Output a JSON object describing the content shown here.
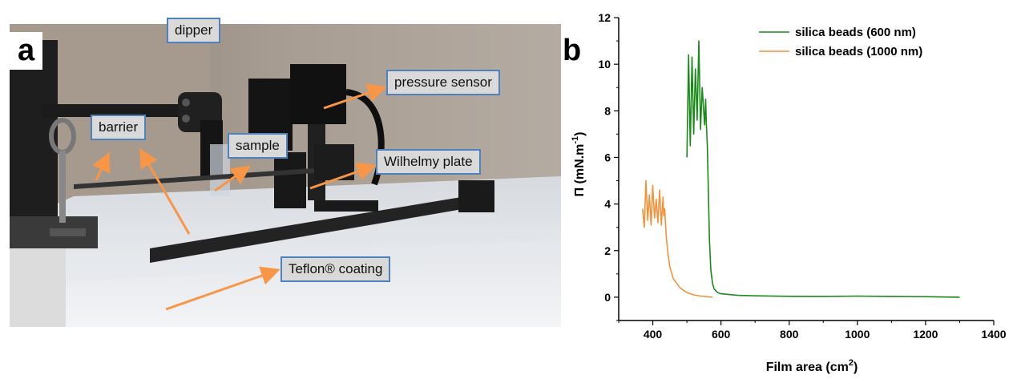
{
  "panel_a": {
    "letter": "a",
    "labels": {
      "dipper": "dipper",
      "barrier": "barrier",
      "sample": "sample",
      "pressure_sensor": "pressure sensor",
      "wilhelmy_plate": "Wilhelmy plate",
      "teflon": "Teflon® coating"
    },
    "colors": {
      "label_fill": "#d9d9d9",
      "label_border": "#4f81bd",
      "arrow": "#f79646"
    }
  },
  "panel_b": {
    "letter": "b"
  },
  "chart_data": {
    "type": "line",
    "xlabel": "Film area (cm",
    "xlabel_sup": "2",
    "xlabel_end": ")",
    "ylabel": "Π (mN.m",
    "ylabel_sup": "-1",
    "ylabel_end": ")",
    "xlim": [
      300,
      1400
    ],
    "ylim": [
      -1,
      12
    ],
    "x_ticks": [
      400,
      600,
      800,
      1000,
      1200,
      1400
    ],
    "y_ticks": [
      0,
      2,
      4,
      6,
      8,
      10,
      12
    ],
    "legend_position": "top-right",
    "series": [
      {
        "name": "silica beads (600 nm)",
        "color": "#1a8a1a",
        "x": [
          1300,
          1200,
          1100,
          1000,
          900,
          800,
          700,
          650,
          620,
          600,
          590,
          580,
          575,
          570,
          566,
          563,
          560,
          557,
          555,
          552,
          550,
          545,
          540,
          535,
          530,
          525,
          520,
          515,
          510,
          505,
          500
        ],
        "y": [
          0.0,
          0.02,
          0.03,
          0.05,
          0.03,
          0.04,
          0.06,
          0.08,
          0.12,
          0.15,
          0.2,
          0.35,
          0.6,
          1.2,
          2.5,
          4.5,
          6.5,
          7.5,
          8.5,
          7.4,
          7.8,
          9.0,
          7.2,
          11.0,
          7.6,
          9.8,
          7.0,
          10.3,
          6.5,
          10.4,
          6.0
        ]
      },
      {
        "name": "silica beads (1000 nm)",
        "color": "#f4923a",
        "x": [
          575,
          560,
          540,
          520,
          500,
          480,
          460,
          450,
          445,
          440,
          437,
          435,
          432,
          430,
          425,
          420,
          415,
          410,
          405,
          400,
          395,
          390,
          385,
          380,
          375,
          370
        ],
        "y": [
          0.0,
          0.02,
          0.05,
          0.1,
          0.2,
          0.4,
          0.8,
          1.3,
          1.8,
          2.5,
          3.2,
          3.8,
          3.5,
          4.3,
          3.1,
          4.6,
          3.2,
          4.2,
          3.4,
          4.8,
          3.1,
          4.4,
          3.3,
          5.0,
          3.0,
          3.8
        ]
      }
    ]
  }
}
